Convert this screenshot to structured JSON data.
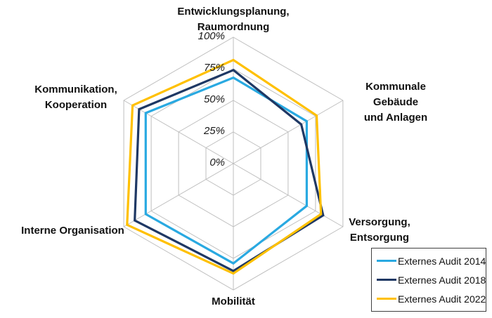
{
  "figure": {
    "background": "#FFFFFF",
    "text_color": "#111111"
  },
  "chart_data": {
    "type": "radar",
    "title": "",
    "grid": true,
    "grid_shape": "hexagon",
    "grid_color": "#BFBFBF",
    "rmin": 0,
    "rmax": 100,
    "grid_step": 25,
    "legend_position": "bottom-right",
    "categories": [
      "Entwicklungsplanung,\nRaumordnung",
      "Kommunale Gebäude\nund Anlagen",
      "Versorgung,\nEntsorgung",
      "Mobilität",
      "Interne Organisation",
      "Kommunikation,\nKooperation"
    ],
    "scale_labels": [
      {
        "value": 0,
        "text": "0%"
      },
      {
        "value": 25,
        "text": "25%"
      },
      {
        "value": 50,
        "text": "50%"
      },
      {
        "value": 75,
        "text": "75%"
      },
      {
        "value": 100,
        "text": "100%"
      }
    ],
    "series": [
      {
        "name": "Externes Audit 2014",
        "color": "#29A9E1",
        "values": [
          68,
          67,
          67,
          79,
          80,
          80
        ]
      },
      {
        "name": "Externes Audit 2018",
        "color": "#1F3864",
        "values": [
          74,
          62,
          82,
          85,
          90,
          86
        ]
      },
      {
        "name": "Externes Audit 2022",
        "color": "#FFC000",
        "values": [
          82,
          76,
          80,
          87,
          97,
          92
        ]
      }
    ]
  }
}
